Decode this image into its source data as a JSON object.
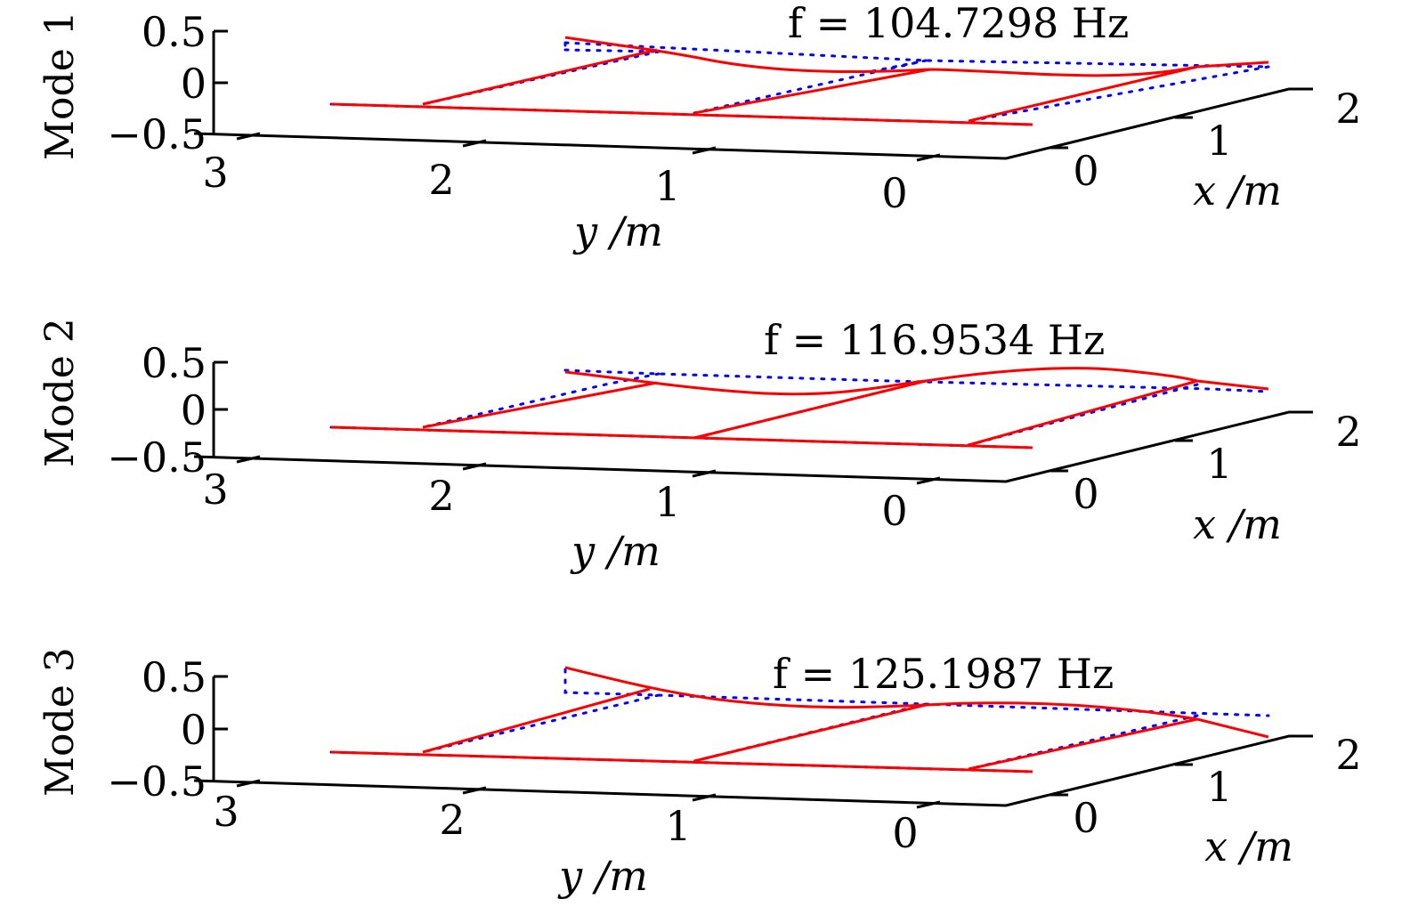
{
  "chart_data": [
    {
      "type": "line",
      "panel_label": "Mode 1",
      "title": "f = 104.7298 Hz",
      "xlabel": "x /m",
      "ylabel": "y /m",
      "x_ticks": [
        "0",
        "1",
        "2"
      ],
      "y_ticks": [
        "3",
        "2",
        "1",
        "0"
      ],
      "z_ticks": [
        "0.5",
        "0",
        "−0.5"
      ],
      "zlim": [
        -0.5,
        0.5
      ],
      "series": [
        {
          "color": "#ff0000",
          "style": "solid",
          "curves": [
            [
              [
                0,
                3.5,
                0
              ],
              [
                0,
                0,
                0
              ]
            ],
            [
              [
                0.7,
                2.5,
                0.35
              ],
              [
                1.0,
                1.5,
                0.15
              ],
              [
                1.3,
                0.5,
                0.05
              ],
              [
                1.6,
                -0.5,
                0.05
              ]
            ],
            [
              [
                0,
                2.5,
                0
              ],
              [
                0.7,
                2.5,
                0.35
              ]
            ],
            [
              [
                0,
                1.5,
                0
              ],
              [
                1.0,
                1.5,
                0.15
              ]
            ],
            [
              [
                0,
                0.5,
                0
              ],
              [
                1.3,
                0.5,
                0.05
              ]
            ]
          ]
        },
        {
          "color": "#0000ff",
          "style": "dotted",
          "curves": [
            [
              [
                0,
                3.5,
                0
              ],
              [
                0,
                0,
                0
              ]
            ],
            [
              [
                0.7,
                2.5,
                0.3
              ],
              [
                1.0,
                1.5,
                0.2
              ],
              [
                1.3,
                0.5,
                0.05
              ],
              [
                1.6,
                -0.5,
                0.0
              ]
            ]
          ]
        }
      ]
    },
    {
      "type": "line",
      "panel_label": "Mode 2",
      "title": "f = 116.9534 Hz",
      "xlabel": "x /m",
      "ylabel": "y /m",
      "x_ticks": [
        "0",
        "1",
        "2"
      ],
      "y_ticks": [
        "3",
        "2",
        "1",
        "0"
      ],
      "z_ticks": [
        "0.5",
        "0",
        "−0.5"
      ],
      "zlim": [
        -0.5,
        0.5
      ],
      "series": [
        {
          "color": "#ff0000",
          "style": "solid",
          "curves": [
            [
              [
                0,
                3.5,
                0
              ],
              [
                0,
                0,
                0
              ]
            ],
            [
              [
                0.7,
                2.5,
                0.05
              ],
              [
                1.0,
                1.5,
                0.05
              ],
              [
                1.3,
                0.5,
                0.3
              ],
              [
                1.6,
                -0.5,
                0.0
              ]
            ],
            [
              [
                0,
                2.5,
                0
              ],
              [
                0.7,
                2.5,
                0.05
              ]
            ],
            [
              [
                0,
                1.5,
                0
              ],
              [
                1.0,
                1.5,
                0.05
              ]
            ],
            [
              [
                0,
                0.5,
                0
              ],
              [
                1.3,
                0.5,
                0.3
              ]
            ]
          ]
        },
        {
          "color": "#0000ff",
          "style": "dotted",
          "curves": [
            [
              [
                0,
                3.5,
                0
              ],
              [
                0,
                0,
                0
              ]
            ],
            [
              [
                0.7,
                2.5,
                0.15
              ],
              [
                1.0,
                1.5,
                0.1
              ],
              [
                1.3,
                0.5,
                0.1
              ],
              [
                1.6,
                -0.5,
                0.0
              ]
            ]
          ]
        }
      ]
    },
    {
      "type": "line",
      "panel_label": "Mode 3",
      "title": "f = 125.1987 Hz",
      "xlabel": "x /m",
      "ylabel": "y /m",
      "x_ticks": [
        "0",
        "1",
        "2"
      ],
      "y_ticks": [
        "3",
        "2",
        "1",
        "0"
      ],
      "z_ticks": [
        "0.5",
        "0",
        "−0.5"
      ],
      "zlim": [
        -0.5,
        0.5
      ],
      "series": [
        {
          "color": "#ff0000",
          "style": "solid",
          "curves": [
            [
              [
                0,
                3.5,
                0
              ],
              [
                0,
                0,
                0
              ]
            ],
            [
              [
                0.7,
                2.5,
                0.45
              ],
              [
                1.0,
                1.5,
                0.15
              ],
              [
                1.3,
                0.5,
                0.1
              ],
              [
                1.6,
                -0.5,
                -0.15
              ]
            ],
            [
              [
                0,
                2.5,
                0
              ],
              [
                0.7,
                2.5,
                0.45
              ]
            ],
            [
              [
                0,
                1.5,
                0
              ],
              [
                1.0,
                1.5,
                0.15
              ]
            ],
            [
              [
                0,
                0.5,
                0
              ],
              [
                1.3,
                0.5,
                0.1
              ]
            ]
          ]
        },
        {
          "color": "#0000ff",
          "style": "dotted",
          "curves": [
            [
              [
                0,
                3.5,
                0
              ],
              [
                0,
                0,
                0
              ]
            ],
            [
              [
                0.7,
                2.5,
                0.25
              ],
              [
                1.0,
                1.5,
                0.2
              ],
              [
                1.3,
                0.5,
                0.05
              ],
              [
                1.6,
                -0.5,
                0.05
              ]
            ]
          ]
        }
      ]
    }
  ]
}
